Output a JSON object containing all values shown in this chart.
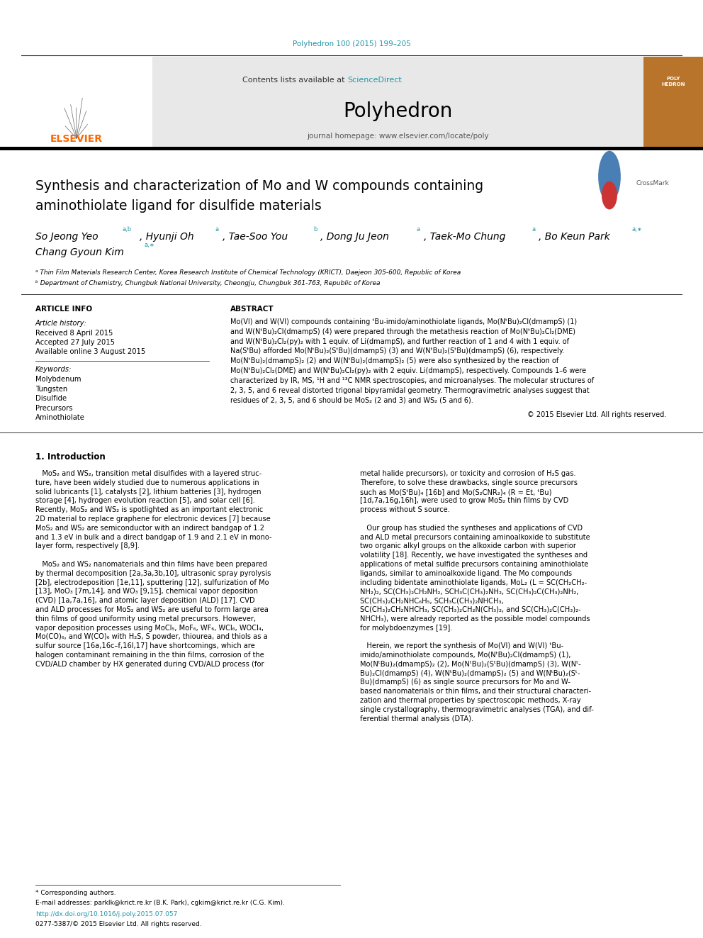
{
  "page_width": 9.92,
  "page_height": 13.23,
  "background_color": "#ffffff",
  "journal_ref": "Polyhedron 100 (2015) 199–205",
  "journal_ref_color": "#2196a8",
  "header_bg": "#e8e8e8",
  "header_text": "Contents lists available at ",
  "sciencedirect_text": "ScienceDirect",
  "header_text_color": "#333333",
  "link_color": "#2196a8",
  "journal_name": "Polyhedron",
  "journal_url": "journal homepage: www.elsevier.com/locate/poly",
  "elsevier_color": "#ff6600",
  "article_title_line1": "Synthesis and characterization of Mo and W compounds containing",
  "article_title_line2": "aminothiolate ligand for disulfide materials",
  "affil_a": "ᵃ Thin Film Materials Research Center, Korea Research Institute of Chemical Technology (KRICT), Daejeon 305-600, Republic of Korea",
  "affil_b": "ᵇ Department of Chemistry, Chungbuk National University, Cheongju, Chungbuk 361-763, Republic of Korea",
  "article_info_header": "ARTICLE INFO",
  "article_history_label": "Article history:",
  "received": "Received 8 April 2015",
  "accepted": "Accepted 27 July 2015",
  "available": "Available online 3 August 2015",
  "keywords_label": "Keywords:",
  "keywords": [
    "Molybdenum",
    "Tungsten",
    "Disulfide",
    "Precursors",
    "Aminothiolate"
  ],
  "abstract_header": "ABSTRACT",
  "abstract_lines": [
    "Mo(VI) and W(VI) compounds containing ᵗBu-imido/aminothiolate ligands, Mo(NᵗBu)₂Cl(dmampS) (1)",
    "and W(NᵗBu)₂Cl(dmampS) (4) were prepared through the metathesis reaction of Mo(NᵗBu)₂Cl₂(DME)",
    "and W(NᵗBu)₂Cl₂(py)₂ with 1 equiv. of Li(dmampS), and further reaction of 1 and 4 with 1 equiv. of",
    "Na(SᵗBu) afforded Mo(NᵗBu)₂(SᵗBu)(dmampS) (3) and W(NᵗBu)₂(SᵗBu)(dmampS) (6), respectively.",
    "Mo(NᵗBu)₂(dmampS)₂ (2) and W(NᵗBu)₂(dmampS)₂ (5) were also synthesized by the reaction of",
    "Mo(NᵗBu)₂Cl₂(DME) and W(NᵗBu)₂Cl₂(py)₂ with 2 equiv. Li(dmampS), respectively. Compounds 1–6 were",
    "characterized by IR, MS, ¹H and ¹³C NMR spectroscopies, and microanalyses. The molecular structures of",
    "2, 3, 5, and 6 reveal distorted trigonal bipyramidal geometry. Thermogravimetric analyses suggest that",
    "residues of 2, 3, 5, and 6 should be MoS₂ (2 and 3) and WS₂ (5 and 6)."
  ],
  "copyright": "© 2015 Elsevier Ltd. All rights reserved.",
  "intro_header": "1. Introduction",
  "intro_col1_lines": [
    "   MoS₂ and WS₂, transition metal disulfides with a layered struc-",
    "ture, have been widely studied due to numerous applications in",
    "solid lubricants [1], catalysts [2], lithium batteries [3], hydrogen",
    "storage [4], hydrogen evolution reaction [5], and solar cell [6].",
    "Recently, MoS₂ and WS₂ is spotlighted as an important electronic",
    "2D material to replace graphene for electronic devices [7] because",
    "MoS₂ and WS₂ are semiconductor with an indirect bandgap of 1.2",
    "and 1.3 eV in bulk and a direct bandgap of 1.9 and 2.1 eV in mono-",
    "layer form, respectively [8,9].",
    "",
    "   MoS₂ and WS₂ nanomaterials and thin films have been prepared",
    "by thermal decomposition [2a,3a,3b,10], ultrasonic spray pyrolysis",
    "[2b], electrodeposition [1e,11], sputtering [12], sulfurization of Mo",
    "[13], MoO₃ [7m,14], and WO₃ [9,15], chemical vapor deposition",
    "(CVD) [1a,7a,16], and atomic layer deposition (ALD) [17]. CVD",
    "and ALD processes for MoS₂ and WS₂ are useful to form large area",
    "thin films of good uniformity using metal precursors. However,",
    "vapor deposition processes using MoCl₅, MoF₆, WF₆, WCl₆, WOCl₄,",
    "Mo(CO)₆, and W(CO)₆ with H₂S, S powder, thiourea, and thiols as a",
    "sulfur source [16a,16c–f,16l,17] have shortcomings, which are",
    "halogen contaminant remaining in the thin films, corrosion of the",
    "CVD/ALD chamber by HX generated during CVD/ALD process (for"
  ],
  "intro_col2_lines": [
    "metal halide precursors), or toxicity and corrosion of H₂S gas.",
    "Therefore, to solve these drawbacks, single source precursors",
    "such as Mo(SᵗBu)₄ [16b] and Mo(S₂CNR₂)₄ (R = Et, ᵗBu)",
    "[1d,7a,16g,16h], were used to grow MoS₂ thin films by CVD",
    "process without S source.",
    "",
    "   Our group has studied the syntheses and applications of CVD",
    "and ALD metal precursors containing aminoalkoxide to substitute",
    "two organic alkyl groups on the alkoxide carbon with superior",
    "volatility [18]. Recently, we have investigated the syntheses and",
    "applications of metal sulfide precursors containing aminothiolate",
    "ligands, similar to aminoalkoxide ligand. The Mo compounds",
    "including bidentate aminothiolate ligands, MoL₂ (L = SC(CH₂CH₂-",
    "NH₂)₂, SC(CH₃)₂CH₂NH₂, SCH₃C(CH₃)₂NH₂, SC(CH₃)₂C(CH₃)₂NH₂,",
    "SC(CH₃)₂CH₂NHC₆H₅, SCH₃C(CH₃)₂NHCH₃,",
    "SC(CH₃)₂CH₂NHCH₃, SC(CH₃)₂CH₂N(CH₃)₂, and SC(CH₃)₂C(CH₃)₂-",
    "NHCH₃), were already reported as the possible model compounds",
    "for molybdoenzymes [19].",
    "",
    "   Herein, we report the synthesis of Mo(VI) and W(VI) ᵗBu-",
    "imido/aminothiolate compounds, Mo(NᵗBu)₂Cl(dmampS) (1),",
    "Mo(NᵗBu)₂(dmampS)₂ (2), Mo(NᵗBu)₂(SᵗBu)(dmampS) (3), W(Nᵗ-",
    "Bu)₂Cl(dmampS) (4), W(NᵗBu)₂(dmampS)₂ (5) and W(NᵗBu)₂(Sᵗ-",
    "Bu)(dmampS) (6) as single source precursors for Mo and W-",
    "based nanomaterials or thin films, and their structural characteri-",
    "zation and thermal properties by spectroscopic methods, X-ray",
    "single crystallography, thermogravimetric analyses (TGA), and dif-",
    "ferential thermal analysis (DTA)."
  ],
  "footnote_star": "* Corresponding authors.",
  "footnote_email": "E-mail addresses: parklk@krict.re.kr (B.K. Park), cgkim@krict.re.kr (C.G. Kim).",
  "doi": "http://dx.doi.org/10.1016/j.poly.2015.07.057",
  "issn": "0277-5387/© 2015 Elsevier Ltd. All rights reserved.",
  "divider_color": "#333333",
  "thick_divider_color": "#000000"
}
